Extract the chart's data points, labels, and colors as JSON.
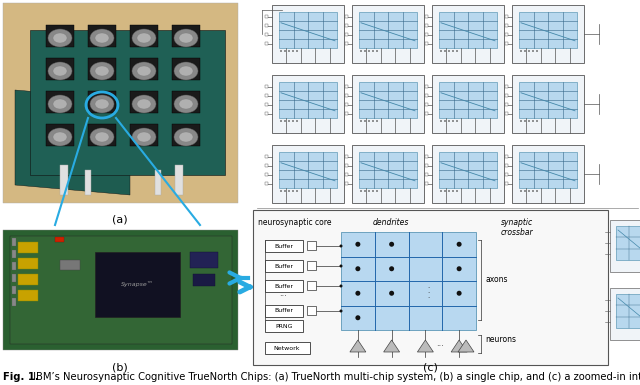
{
  "fig_width": 6.4,
  "fig_height": 3.85,
  "dpi": 100,
  "background_color": "#ffffff",
  "caption_bold_part": "Fig. 1.",
  "caption_normal_part": " IBM’s Neurosynaptic Cognitive TrueNorth Chips: (a) TrueNorth multi-chip system, (b) a single chip, and (c) a zoomed-in intern",
  "label_a": "(a)",
  "label_b": "(b)",
  "label_c": "(c)",
  "label_fontsize": 8,
  "caption_fontsize": 7.2,
  "arrow_color": "#29abe2",
  "photo_a_bg": "#c8a96e",
  "chip_grid_color": "#aab8c0",
  "board_teal": "#2a6655",
  "board_b_bg": "#3a7040"
}
